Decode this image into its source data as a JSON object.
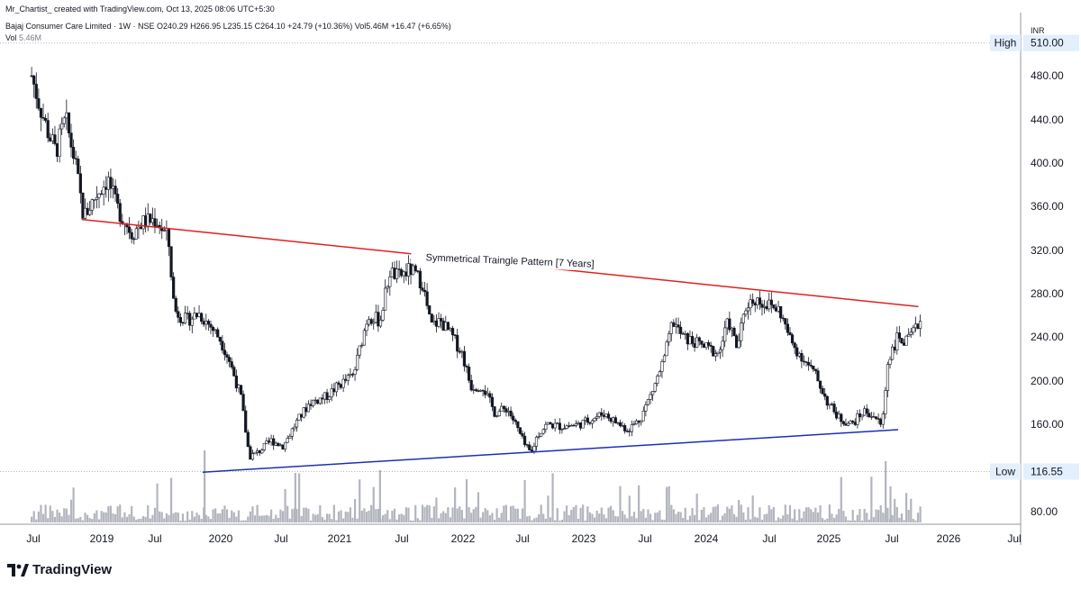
{
  "header": {
    "credit": "Mr_Chartist_ created with TradingView.com, Oct 13, 2025 08:06 UTC+5:30",
    "symbol_info": "Bajaj Consumer Care Limited · 1W · NSE  O240.29  H266.95  L235.15  C264.10  +24.79 (+10.36%)  Vol5.46M  +16.47 (+6.65%)",
    "vol_label": "Vol",
    "vol_value": "5.46M"
  },
  "footer": {
    "logo_text": "TradingView",
    "logo_icon": "tradingview-logo-icon"
  },
  "chart_data": {
    "type": "candlestick",
    "currency": "INR",
    "y_ticks": [
      "480.00",
      "440.00",
      "400.00",
      "360.00",
      "320.00",
      "280.00",
      "240.00",
      "200.00",
      "160.00",
      "80.00"
    ],
    "x_ticks": [
      "Jul",
      "2019",
      "Jul",
      "2020",
      "Jul",
      "2021",
      "Jul",
      "2022",
      "Jul",
      "2023",
      "Jul",
      "2024",
      "Jul",
      "2025",
      "Jul",
      "2026",
      "Jul"
    ],
    "ylim": [
      80,
      520
    ],
    "high_marker": {
      "label": "High",
      "value": "510.00"
    },
    "low_marker": {
      "label": "Low",
      "value": "116.55"
    },
    "annotation": "Symmetrical Traingle Pattern [7 Years]",
    "resistance_line": {
      "from": {
        "date": "2018-11",
        "price": 348
      },
      "to": {
        "date": "2025-10",
        "price": 268
      },
      "color": "#e02020"
    },
    "support_line": {
      "from": {
        "date": "2019-11",
        "price": 116
      },
      "to": {
        "date": "2025-08",
        "price": 155
      },
      "color": "#1c2fb8"
    },
    "price_path": [
      [
        2018.42,
        480
      ],
      [
        2018.48,
        455
      ],
      [
        2018.55,
        430
      ],
      [
        2018.62,
        410
      ],
      [
        2018.7,
        440
      ],
      [
        2018.78,
        400
      ],
      [
        2018.85,
        350
      ],
      [
        2018.95,
        370
      ],
      [
        2019.05,
        385
      ],
      [
        2019.12,
        360
      ],
      [
        2019.25,
        335
      ],
      [
        2019.33,
        345
      ],
      [
        2019.45,
        348
      ],
      [
        2019.55,
        330
      ],
      [
        2019.6,
        265
      ],
      [
        2019.7,
        255
      ],
      [
        2019.8,
        262
      ],
      [
        2019.9,
        250
      ],
      [
        2019.98,
        238
      ],
      [
        2020.05,
        220
      ],
      [
        2020.15,
        185
      ],
      [
        2020.22,
        130
      ],
      [
        2020.3,
        135
      ],
      [
        2020.4,
        145
      ],
      [
        2020.5,
        140
      ],
      [
        2020.6,
        160
      ],
      [
        2020.72,
        180
      ],
      [
        2020.85,
        185
      ],
      [
        2020.95,
        195
      ],
      [
        2021.08,
        205
      ],
      [
        2021.2,
        260
      ],
      [
        2021.3,
        255
      ],
      [
        2021.38,
        300
      ],
      [
        2021.45,
        295
      ],
      [
        2021.55,
        302
      ],
      [
        2021.65,
        290
      ],
      [
        2021.72,
        250
      ],
      [
        2021.8,
        255
      ],
      [
        2021.9,
        240
      ],
      [
        2021.98,
        225
      ],
      [
        2022.05,
        195
      ],
      [
        2022.15,
        195
      ],
      [
        2022.25,
        170
      ],
      [
        2022.35,
        175
      ],
      [
        2022.42,
        160
      ],
      [
        2022.5,
        140
      ],
      [
        2022.55,
        133
      ],
      [
        2022.6,
        150
      ],
      [
        2022.68,
        160
      ],
      [
        2022.8,
        158
      ],
      [
        2022.95,
        160
      ],
      [
        2023.05,
        165
      ],
      [
        2023.15,
        170
      ],
      [
        2023.25,
        162
      ],
      [
        2023.35,
        155
      ],
      [
        2023.45,
        165
      ],
      [
        2023.55,
        190
      ],
      [
        2023.65,
        220
      ],
      [
        2023.72,
        255
      ],
      [
        2023.8,
        240
      ],
      [
        2023.9,
        235
      ],
      [
        2024.0,
        230
      ],
      [
        2024.1,
        225
      ],
      [
        2024.18,
        255
      ],
      [
        2024.25,
        230
      ],
      [
        2024.33,
        270
      ],
      [
        2024.4,
        275
      ],
      [
        2024.5,
        270
      ],
      [
        2024.6,
        265
      ],
      [
        2024.7,
        235
      ],
      [
        2024.8,
        220
      ],
      [
        2024.9,
        205
      ],
      [
        2025.0,
        180
      ],
      [
        2025.1,
        165
      ],
      [
        2025.2,
        160
      ],
      [
        2025.3,
        172
      ],
      [
        2025.38,
        168
      ],
      [
        2025.45,
        158
      ],
      [
        2025.5,
        220
      ],
      [
        2025.58,
        240
      ],
      [
        2025.65,
        235
      ],
      [
        2025.72,
        245
      ],
      [
        2025.78,
        260
      ]
    ]
  }
}
